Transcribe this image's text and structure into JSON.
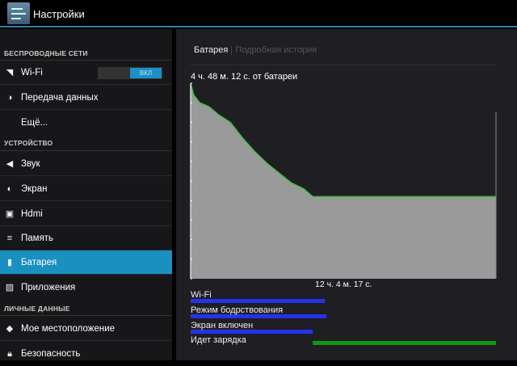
{
  "header": {
    "title": "Настройки",
    "icon": "settings-sliders-icon"
  },
  "sidebar": {
    "sections": [
      "БЕСПРОВОДНЫЕ СЕТИ",
      "УСТРОЙСТВО",
      "ЛИЧНЫЕ ДАННЫЕ"
    ],
    "items": [
      {
        "label": "Wi-Fi",
        "icon": "wifi-icon"
      },
      {
        "label": "Передача данных",
        "icon": "data-usage-icon"
      },
      {
        "label": "Ещё...",
        "icon": ""
      },
      {
        "label": "Звук",
        "icon": "sound-icon"
      },
      {
        "label": "Экран",
        "icon": "display-icon"
      },
      {
        "label": "Hdmi",
        "icon": "hdmi-icon"
      },
      {
        "label": "Память",
        "icon": "storage-icon"
      },
      {
        "label": "Батарея",
        "icon": "battery-icon",
        "selected": true
      },
      {
        "label": "Приложения",
        "icon": "apps-icon"
      },
      {
        "label": "Мое местоположение",
        "icon": "location-icon"
      },
      {
        "label": "Безопасность",
        "icon": "lock-icon"
      }
    ],
    "wifi_toggle": "ВКЛ"
  },
  "main": {
    "tabs": [
      {
        "label": "Батарея",
        "active": true
      },
      {
        "label": "Подробная история",
        "active": false
      }
    ],
    "duration": "4 ч. 48 м. 12 с. от батареи",
    "total": "12 ч. 4 м. 17 с.",
    "rows": [
      "Wi-Fi",
      "Режим бодрствования",
      "Экран включен",
      "Идет зарядка"
    ]
  },
  "chart_data": {
    "type": "area",
    "xlabel": "",
    "ylabel": "",
    "x_unit": "fraction of history",
    "ylim": [
      0,
      100
    ],
    "x": [
      0,
      0.01,
      0.03,
      0.06,
      0.09,
      0.13,
      0.17,
      0.21,
      0.25,
      0.29,
      0.33,
      0.37,
      0.4,
      0.41,
      1.0
    ],
    "battery_percent": [
      100,
      94,
      90,
      88,
      84,
      80,
      72,
      65,
      59,
      54,
      49,
      46,
      42,
      42,
      42
    ],
    "line_color": "#3fbf3f",
    "fill_color": "#9a9a9a",
    "state_bars": [
      {
        "label": "Wi-Fi",
        "color": "#2233ee",
        "on": [
          [
            0,
            0.44
          ]
        ]
      },
      {
        "label": "Режим бодрствования",
        "color": "#2233ee",
        "on": [
          [
            0,
            0.445
          ]
        ]
      },
      {
        "label": "Экран включен",
        "color": "#2233ee",
        "on": [
          [
            0,
            0.4
          ]
        ]
      },
      {
        "label": "Идет зарядка",
        "color": "#119911",
        "on": [
          [
            0.4,
            1.0
          ]
        ]
      }
    ]
  }
}
